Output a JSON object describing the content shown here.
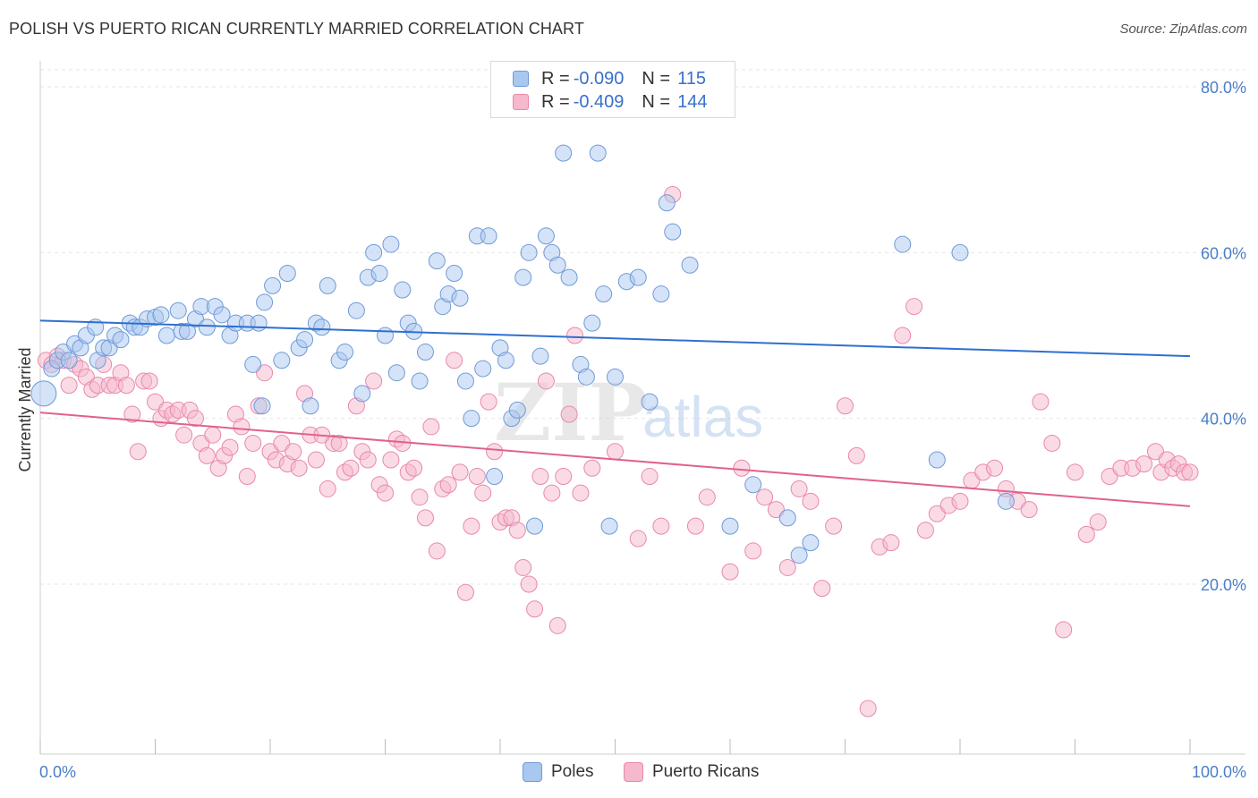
{
  "title": "POLISH VS PUERTO RICAN CURRENTLY MARRIED CORRELATION CHART",
  "source": "Source: ZipAtlas.com",
  "watermark": "ZIPatlas",
  "colors": {
    "poles_fill": "#a9c8f0",
    "poles_stroke": "#6f9ad8",
    "poles_line": "#2e6fd0",
    "pr_fill": "#f5b8cc",
    "pr_stroke": "#e889a8",
    "pr_line": "#e0628e",
    "axis_label": "#4a7ec7",
    "grid": "#e6e6e6"
  },
  "legend": {
    "rows": [
      {
        "r_label": "R = ",
        "r_value": "-0.090",
        "n_label": "N = ",
        "n_value": "115"
      },
      {
        "r_label": "R = ",
        "r_value": "-0.409",
        "n_label": "N = ",
        "n_value": "144"
      }
    ]
  },
  "bottom_legend": [
    "Poles",
    "Puerto Ricans"
  ],
  "chart_data": {
    "type": "scatter",
    "title": "POLISH VS PUERTO RICAN CURRENTLY MARRIED CORRELATION CHART",
    "xlabel": "",
    "ylabel": "Currently Married",
    "xlim": [
      0,
      100
    ],
    "ylim": [
      2,
      82
    ],
    "x_tick_labels": [
      "0.0%",
      "100.0%"
    ],
    "y_ticks": [
      20,
      40,
      60,
      80
    ],
    "y_tick_labels": [
      "20.0%",
      "40.0%",
      "60.0%",
      "80.0%"
    ],
    "grid": true,
    "legend_position": "top-center",
    "series": [
      {
        "name": "Poles",
        "r": -0.09,
        "n": 115,
        "trend": {
          "x": [
            0,
            100
          ],
          "y": [
            51.8,
            47.5
          ]
        },
        "points": [
          [
            0.3,
            43
          ],
          [
            1,
            46
          ],
          [
            1.5,
            47
          ],
          [
            2,
            48
          ],
          [
            2.5,
            47
          ],
          [
            3,
            49
          ],
          [
            3.5,
            48.5
          ],
          [
            4,
            50
          ],
          [
            4.8,
            51
          ],
          [
            5,
            47
          ],
          [
            5.5,
            48.5
          ],
          [
            6,
            48.5
          ],
          [
            6.5,
            50
          ],
          [
            7,
            49.5
          ],
          [
            7.8,
            51.5
          ],
          [
            8.2,
            51
          ],
          [
            8.7,
            51
          ],
          [
            9.3,
            52
          ],
          [
            10,
            52.2
          ],
          [
            10.5,
            52.5
          ],
          [
            11,
            50
          ],
          [
            12,
            53
          ],
          [
            12.3,
            50.5
          ],
          [
            12.8,
            50.5
          ],
          [
            13.5,
            52
          ],
          [
            14,
            53.5
          ],
          [
            14.5,
            51
          ],
          [
            15.2,
            53.5
          ],
          [
            15.8,
            52.5
          ],
          [
            16.5,
            50
          ],
          [
            17,
            51.5
          ],
          [
            18,
            51.5
          ],
          [
            18.5,
            46.5
          ],
          [
            19,
            51.5
          ],
          [
            19.3,
            41.5
          ],
          [
            19.5,
            54
          ],
          [
            20.2,
            56
          ],
          [
            21,
            47
          ],
          [
            21.5,
            57.5
          ],
          [
            22.5,
            48.5
          ],
          [
            23,
            49.5
          ],
          [
            23.5,
            41.5
          ],
          [
            24,
            51.5
          ],
          [
            24.5,
            51
          ],
          [
            25,
            56
          ],
          [
            26,
            47
          ],
          [
            26.5,
            48
          ],
          [
            27.5,
            53
          ],
          [
            28,
            43
          ],
          [
            28.5,
            57
          ],
          [
            29,
            60
          ],
          [
            29.5,
            57.5
          ],
          [
            30,
            50
          ],
          [
            30.5,
            61
          ],
          [
            31,
            45.5
          ],
          [
            31.5,
            55.5
          ],
          [
            32,
            51.5
          ],
          [
            32.5,
            50.5
          ],
          [
            33,
            44.5
          ],
          [
            33.5,
            48
          ],
          [
            34.5,
            59
          ],
          [
            35,
            53.5
          ],
          [
            35.5,
            55
          ],
          [
            36,
            57.5
          ],
          [
            36.5,
            54.5
          ],
          [
            37,
            44.5
          ],
          [
            37.5,
            40
          ],
          [
            38,
            62
          ],
          [
            38.5,
            46
          ],
          [
            39,
            62
          ],
          [
            39.5,
            33
          ],
          [
            40,
            48.5
          ],
          [
            40.5,
            47
          ],
          [
            41,
            40
          ],
          [
            41.5,
            41
          ],
          [
            42,
            57
          ],
          [
            42.5,
            60
          ],
          [
            43,
            27
          ],
          [
            43.5,
            47.5
          ],
          [
            44,
            62
          ],
          [
            44.5,
            60
          ],
          [
            45,
            58.5
          ],
          [
            45.5,
            72
          ],
          [
            46,
            57
          ],
          [
            46.5,
            78
          ],
          [
            47,
            46.5
          ],
          [
            47.5,
            45
          ],
          [
            48,
            51.5
          ],
          [
            48.5,
            72
          ],
          [
            49,
            55
          ],
          [
            49.5,
            27
          ],
          [
            50,
            45
          ],
          [
            51,
            56.5
          ],
          [
            52,
            57
          ],
          [
            53,
            42
          ],
          [
            54,
            55
          ],
          [
            54.5,
            66
          ],
          [
            55,
            62.5
          ],
          [
            56.5,
            58.5
          ],
          [
            60,
            27
          ],
          [
            62,
            32
          ],
          [
            65,
            28
          ],
          [
            66,
            23.5
          ],
          [
            67,
            25
          ],
          [
            75,
            61
          ],
          [
            78,
            35
          ],
          [
            80,
            60
          ],
          [
            84,
            30
          ]
        ]
      },
      {
        "name": "Puerto Ricans",
        "r": -0.409,
        "n": 144,
        "trend": {
          "x": [
            0,
            100
          ],
          "y": [
            40.7,
            29.4
          ]
        },
        "points": [
          [
            0.5,
            47
          ],
          [
            1,
            46.5
          ],
          [
            1.5,
            47.5
          ],
          [
            2,
            47
          ],
          [
            2.5,
            44
          ],
          [
            3,
            46.5
          ],
          [
            3.5,
            46
          ],
          [
            4,
            45
          ],
          [
            4.5,
            43.5
          ],
          [
            5,
            44
          ],
          [
            5.5,
            46.5
          ],
          [
            6,
            44
          ],
          [
            6.5,
            44
          ],
          [
            7,
            45.5
          ],
          [
            7.5,
            44
          ],
          [
            8,
            40.5
          ],
          [
            8.5,
            36
          ],
          [
            9,
            44.5
          ],
          [
            9.5,
            44.5
          ],
          [
            10,
            42
          ],
          [
            10.5,
            40
          ],
          [
            11,
            41
          ],
          [
            11.5,
            40.5
          ],
          [
            12,
            41
          ],
          [
            12.5,
            38
          ],
          [
            13,
            41
          ],
          [
            13.5,
            40
          ],
          [
            14,
            37
          ],
          [
            14.5,
            35.5
          ],
          [
            15,
            38
          ],
          [
            15.5,
            34
          ],
          [
            16,
            35.5
          ],
          [
            16.5,
            36.5
          ],
          [
            17,
            40.5
          ],
          [
            17.5,
            39
          ],
          [
            18,
            33
          ],
          [
            18.5,
            37
          ],
          [
            19,
            41.5
          ],
          [
            19.5,
            45.5
          ],
          [
            20,
            36
          ],
          [
            20.5,
            35
          ],
          [
            21,
            37
          ],
          [
            21.5,
            34.5
          ],
          [
            22,
            36
          ],
          [
            22.5,
            34
          ],
          [
            23,
            43
          ],
          [
            23.5,
            38
          ],
          [
            24,
            35
          ],
          [
            24.5,
            38
          ],
          [
            25,
            31.5
          ],
          [
            25.5,
            37
          ],
          [
            26,
            37
          ],
          [
            26.5,
            33.5
          ],
          [
            27,
            34
          ],
          [
            27.5,
            41.5
          ],
          [
            28,
            36
          ],
          [
            28.5,
            35
          ],
          [
            29,
            44.5
          ],
          [
            29.5,
            32
          ],
          [
            30,
            31
          ],
          [
            30.5,
            35
          ],
          [
            31,
            37.5
          ],
          [
            31.5,
            37
          ],
          [
            32,
            33.5
          ],
          [
            32.5,
            34
          ],
          [
            33,
            30.5
          ],
          [
            33.5,
            28
          ],
          [
            34,
            39
          ],
          [
            34.5,
            24
          ],
          [
            35,
            31.5
          ],
          [
            35.5,
            32
          ],
          [
            36,
            47
          ],
          [
            36.5,
            33.5
          ],
          [
            37,
            19
          ],
          [
            37.5,
            27
          ],
          [
            38,
            33
          ],
          [
            38.5,
            31
          ],
          [
            39,
            42
          ],
          [
            39.5,
            36
          ],
          [
            40,
            27.5
          ],
          [
            40.5,
            28
          ],
          [
            41,
            28
          ],
          [
            41.5,
            26.5
          ],
          [
            42,
            22
          ],
          [
            42.5,
            20
          ],
          [
            43,
            17
          ],
          [
            43.5,
            33
          ],
          [
            44,
            44.5
          ],
          [
            44.5,
            31
          ],
          [
            45,
            15
          ],
          [
            45.5,
            33
          ],
          [
            46,
            40.5
          ],
          [
            46.5,
            50
          ],
          [
            47,
            31
          ],
          [
            48,
            34
          ],
          [
            50,
            36
          ],
          [
            52,
            25.5
          ],
          [
            53,
            33
          ],
          [
            54,
            27
          ],
          [
            55,
            67
          ],
          [
            57,
            27
          ],
          [
            58,
            30.5
          ],
          [
            60,
            21.5
          ],
          [
            61,
            34
          ],
          [
            62,
            24
          ],
          [
            63,
            30.5
          ],
          [
            64,
            29
          ],
          [
            65,
            22
          ],
          [
            66,
            31.5
          ],
          [
            67,
            30
          ],
          [
            68,
            19.5
          ],
          [
            69,
            27
          ],
          [
            70,
            41.5
          ],
          [
            71,
            35.5
          ],
          [
            72,
            5
          ],
          [
            73,
            24.5
          ],
          [
            74,
            25
          ],
          [
            75,
            50
          ],
          [
            76,
            53.5
          ],
          [
            77,
            26.5
          ],
          [
            78,
            28.5
          ],
          [
            79,
            29.5
          ],
          [
            80,
            30
          ],
          [
            81,
            32.5
          ],
          [
            82,
            33.5
          ],
          [
            83,
            34
          ],
          [
            84,
            31.5
          ],
          [
            85,
            30
          ],
          [
            86,
            29
          ],
          [
            87,
            42
          ],
          [
            88,
            37
          ],
          [
            89,
            14.5
          ],
          [
            90,
            33.5
          ],
          [
            91,
            26
          ],
          [
            92,
            27.5
          ],
          [
            93,
            33
          ],
          [
            94,
            34
          ],
          [
            95,
            34
          ],
          [
            96,
            34.5
          ],
          [
            97,
            36
          ],
          [
            97.5,
            33.5
          ],
          [
            98,
            35
          ],
          [
            98.5,
            34
          ],
          [
            99,
            34.5
          ],
          [
            99.5,
            33.5
          ],
          [
            100,
            33.5
          ]
        ]
      }
    ]
  }
}
